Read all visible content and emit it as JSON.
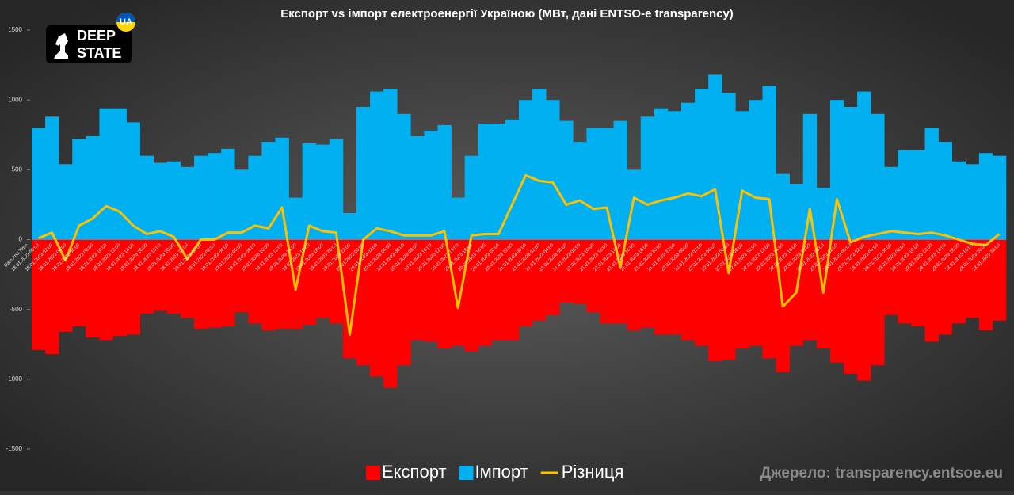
{
  "logo": {
    "line1": "DEEP",
    "line2": "STATE",
    "badge": "UA"
  },
  "chart_data": {
    "type": "bar",
    "title": "Експорт vs імпорт електроенергії Україною (МВт, дані ENTSO-e transparency)",
    "x_label": "Date And Time",
    "source": "Джерело: transparency.entsoe.eu",
    "categories": [
      "18.01.2023 00:00",
      "18.01.2023 02:00",
      "18.01.2023 04:00",
      "18.01.2023 06:00",
      "18.01.2023 08:00",
      "18.01.2023 10:00",
      "18.01.2023 12:00",
      "18.01.2023 14:00",
      "18.01.2023 16:00",
      "18.01.2023 18:00",
      "18.01.2023 20:00",
      "18.01.2023 22:00",
      "19.01.2023 00:00",
      "19.01.2023 02:00",
      "19.01.2023 04:00",
      "19.01.2023 06:00",
      "19.01.2023 08:00",
      "19.01.2023 10:00",
      "19.01.2023 12:00",
      "19.01.2023 14:00",
      "19.01.2023 16:00",
      "19.01.2023 18:00",
      "19.01.2023 20:00",
      "19.01.2023 22:00",
      "20.01.2023 00:00",
      "20.01.2023 02:00",
      "20.01.2023 04:00",
      "20.01.2023 06:00",
      "20.01.2023 08:00",
      "20.01.2023 10:00",
      "20.01.2023 12:00",
      "20.01.2023 14:00",
      "20.01.2023 16:00",
      "20.01.2023 18:00",
      "20.01.2023 20:00",
      "20.01.2023 22:00",
      "21.01.2023 00:00",
      "21.01.2023 02:00",
      "21.01.2023 04:00",
      "21.01.2023 06:00",
      "21.01.2023 08:00",
      "21.01.2023 10:00",
      "21.01.2023 12:00",
      "21.01.2023 14:00",
      "21.01.2023 16:00",
      "21.01.2023 18:00",
      "21.01.2023 20:00",
      "21.01.2023 22:00",
      "22.01.2023 00:00",
      "22.01.2023 02:00",
      "22.01.2023 04:00",
      "22.01.2023 06:00",
      "22.01.2023 08:00",
      "22.01.2023 10:00",
      "22.01.2023 12:00",
      "22.01.2023 14:00",
      "22.01.2023 16:00",
      "22.01.2023 18:00",
      "22.01.2023 20:00",
      "22.01.2023 22:00",
      "23.01.2023 00:00",
      "23.01.2023 02:00",
      "23.01.2023 04:00",
      "23.01.2023 06:00",
      "23.01.2023 08:00",
      "23.01.2023 10:00",
      "23.01.2023 12:00",
      "23.01.2023 14:00",
      "23.01.2023 16:00",
      "23.01.2023 18:00",
      "23.01.2023 20:00",
      "23.01.2023 22:00"
    ],
    "series": [
      {
        "name": "Експорт",
        "color": "#ff0000",
        "type": "bar",
        "values": [
          -790,
          -820,
          -660,
          -620,
          -700,
          -720,
          -690,
          -680,
          -530,
          -510,
          -530,
          -560,
          -640,
          -630,
          -620,
          -520,
          -600,
          -650,
          -640,
          -640,
          -610,
          -560,
          -600,
          -850,
          -900,
          -980,
          -1060,
          -900,
          -720,
          -730,
          -780,
          -760,
          -800,
          -760,
          -720,
          -720,
          -620,
          -580,
          -540,
          -450,
          -460,
          -520,
          -600,
          -600,
          -650,
          -630,
          -680,
          -680,
          -720,
          -760,
          -870,
          -860,
          -780,
          -760,
          -850,
          -950,
          -760,
          -720,
          -780,
          -880,
          -960,
          -1010,
          -900,
          -540,
          -600,
          -620,
          -730,
          -680,
          -600,
          -560,
          -650,
          -580
        ]
      },
      {
        "name": "Імпорт",
        "color": "#00b0f0",
        "type": "bar",
        "values": [
          800,
          880,
          540,
          720,
          740,
          940,
          940,
          840,
          600,
          550,
          560,
          520,
          600,
          620,
          650,
          500,
          600,
          700,
          730,
          300,
          690,
          680,
          720,
          190,
          950,
          1060,
          1080,
          900,
          740,
          780,
          820,
          300,
          600,
          830,
          830,
          860,
          1000,
          1080,
          1000,
          850,
          700,
          800,
          800,
          850,
          500,
          880,
          940,
          920,
          980,
          1080,
          1180,
          1050,
          920,
          1000,
          1100,
          470,
          400,
          900,
          370,
          1000,
          950,
          1060,
          900,
          520,
          640,
          640,
          800,
          700,
          560,
          540,
          620,
          600
        ]
      },
      {
        "name": "Різниця",
        "color": "#ffc000",
        "type": "line",
        "values": [
          10,
          50,
          -150,
          100,
          150,
          240,
          200,
          100,
          40,
          60,
          20,
          -140,
          0,
          0,
          50,
          50,
          100,
          80,
          230,
          -360,
          100,
          60,
          50,
          -680,
          0,
          80,
          60,
          30,
          30,
          30,
          60,
          -490,
          30,
          40,
          40,
          250,
          460,
          420,
          410,
          250,
          280,
          220,
          230,
          -200,
          300,
          250,
          280,
          300,
          330,
          310,
          360,
          -240,
          350,
          300,
          290,
          -480,
          -380,
          220,
          -380,
          290,
          -20,
          20,
          40,
          60,
          50,
          40,
          50,
          30,
          0,
          -30,
          -40,
          40
        ]
      }
    ],
    "ylim": [
      -1500,
      1500
    ],
    "yticks": [
      -1500,
      -1000,
      -500,
      0,
      500,
      1000,
      1500
    ],
    "grid": false
  }
}
